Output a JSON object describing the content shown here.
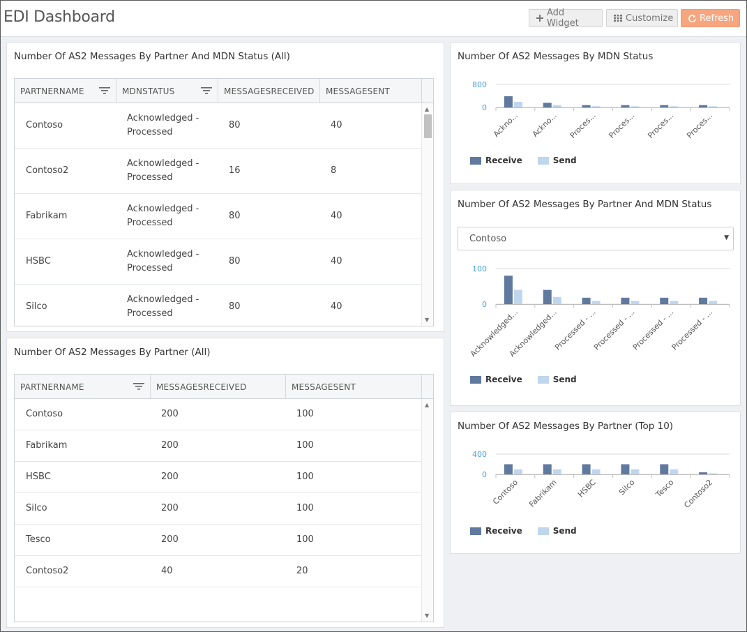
{
  "header": {
    "title": "EDI Dashboard",
    "add_widget": "Add Widget",
    "customize": "Customize",
    "refresh": "Refresh"
  },
  "colors": {
    "receive": "#60799e",
    "send": "#bfd6ee",
    "accent": "#f7a57f",
    "axis_label": "#4a9fd8"
  },
  "panel1": {
    "title": "Number Of AS2 Messages By Partner And MDN Status (All)",
    "columns": [
      "PARTNERNAME",
      "MDNSTATUS",
      "MESSAGESRECEIVED",
      "MESSAGESENT"
    ],
    "rows": [
      {
        "partner": "Contoso",
        "status1": "Acknowledged -",
        "status2": "Processed",
        "received": "80",
        "sent": "40"
      },
      {
        "partner": "Contoso2",
        "status1": "Acknowledged -",
        "status2": "Processed",
        "received": "16",
        "sent": "8"
      },
      {
        "partner": "Fabrikam",
        "status1": "Acknowledged -",
        "status2": "Processed",
        "received": "80",
        "sent": "40"
      },
      {
        "partner": "HSBC",
        "status1": "Acknowledged -",
        "status2": "Processed",
        "received": "80",
        "sent": "40"
      },
      {
        "partner": "Silco",
        "status1": "Acknowledged -",
        "status2": "Processed",
        "received": "80",
        "sent": "40"
      }
    ]
  },
  "panel2": {
    "title": "Number Of AS2 Messages By Partner (All)",
    "columns": [
      "PARTNERNAME",
      "MESSAGESRECEIVED",
      "MESSAGESENT"
    ],
    "rows": [
      {
        "partner": "Contoso",
        "received": "200",
        "sent": "100"
      },
      {
        "partner": "Fabrikam",
        "received": "200",
        "sent": "100"
      },
      {
        "partner": "HSBC",
        "received": "200",
        "sent": "100"
      },
      {
        "partner": "Silco",
        "received": "200",
        "sent": "100"
      },
      {
        "partner": "Tesco",
        "received": "200",
        "sent": "100"
      },
      {
        "partner": "Contoso2",
        "received": "40",
        "sent": "20"
      }
    ]
  },
  "chart1": {
    "title": "Number Of AS2 Messages By MDN Status",
    "legend": [
      "Receive",
      "Send"
    ]
  },
  "chart2": {
    "title": "Number Of AS2 Messages By Partner And MDN Status",
    "select_value": "Contoso",
    "legend": [
      "Receive",
      "Send"
    ]
  },
  "chart3": {
    "title": "Number Of AS2 Messages By Partner (Top 10)",
    "legend": [
      "Receive",
      "Send"
    ]
  },
  "chart_data": [
    {
      "type": "bar",
      "title": "Number Of AS2 Messages By MDN Status",
      "categories": [
        "Ackno...",
        "Ackno...",
        "Proces...",
        "Proces...",
        "Proces...",
        "Proces..."
      ],
      "yticks": [
        0,
        800
      ],
      "ylim": [
        0,
        800
      ],
      "grid": true,
      "legend_position": "bottom-left",
      "series": [
        {
          "name": "Receive",
          "values": [
            390,
            160,
            80,
            80,
            80,
            80
          ]
        },
        {
          "name": "Send",
          "values": [
            195,
            80,
            40,
            40,
            40,
            40
          ]
        }
      ]
    },
    {
      "type": "bar",
      "title": "Number Of AS2 Messages By Partner And MDN Status",
      "categories": [
        "Acknowledged...",
        "Acknowledged...",
        "Processed - ...",
        "Processed - ...",
        "Processed - ...",
        "Processed - ..."
      ],
      "yticks": [
        0,
        100
      ],
      "ylim": [
        0,
        100
      ],
      "grid": true,
      "legend_position": "bottom-left",
      "series": [
        {
          "name": "Receive",
          "values": [
            80,
            40,
            18,
            18,
            18,
            18
          ]
        },
        {
          "name": "Send",
          "values": [
            40,
            20,
            9,
            9,
            9,
            9
          ]
        }
      ]
    },
    {
      "type": "bar",
      "title": "Number Of AS2 Messages By Partner (Top 10)",
      "categories": [
        "Contoso",
        "Fabrikam",
        "HSBC",
        "Silco",
        "Tesco",
        "Contoso2"
      ],
      "yticks": [
        0,
        400
      ],
      "ylim": [
        0,
        400
      ],
      "grid": true,
      "legend_position": "bottom-left",
      "series": [
        {
          "name": "Receive",
          "values": [
            200,
            200,
            200,
            200,
            200,
            40
          ]
        },
        {
          "name": "Send",
          "values": [
            100,
            100,
            100,
            100,
            100,
            20
          ]
        }
      ]
    }
  ]
}
